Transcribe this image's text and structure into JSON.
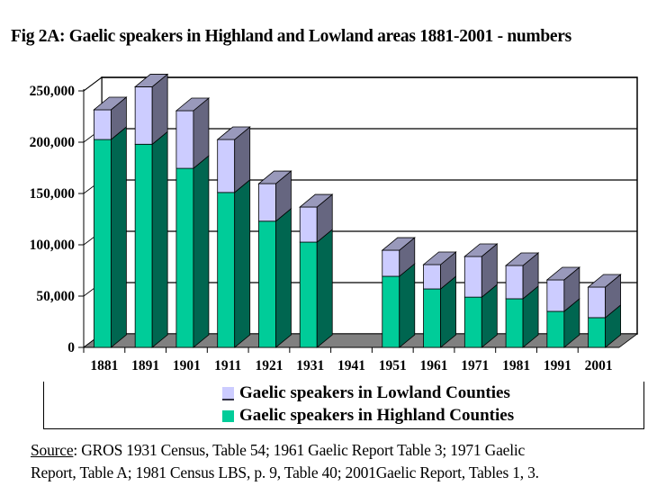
{
  "title": "Fig 2A: Gaelic speakers in Highland and Lowland areas 1881-2001 - numbers",
  "legend": {
    "lowland_label": "Gaelic speakers in Lowland Counties",
    "highland_label": "Gaelic speakers in Highland Counties"
  },
  "colors": {
    "lowland_front": "#ccccff",
    "lowland_side": "#666680",
    "lowland_top": "#9999bb",
    "highland_front": "#00cc99",
    "highland_side": "#006650",
    "floor": "#808080"
  },
  "source": {
    "label": "Source",
    "line1": ": GROS 1931 Census, Table 54; 1961 Gaelic Report Table 3; 1971 Gaelic",
    "line2": "Report, Table A; 1981 Census LBS, p. 9, Table 40; 2001Gaelic Report, Tables 1, 3."
  },
  "chart_data": {
    "type": "bar",
    "stacked": true,
    "three_d": true,
    "title": "Fig 2A: Gaelic speakers in Highland and Lowland areas 1881-2001 - numbers",
    "xlabel": "",
    "ylabel": "",
    "ylim": [
      0,
      250000
    ],
    "yticks": [
      0,
      50000,
      100000,
      150000,
      200000,
      250000
    ],
    "ytick_labels": [
      "0",
      "50,000",
      "100,000",
      "150,000",
      "200,000",
      "250,000"
    ],
    "grid": true,
    "legend_position": "bottom",
    "categories": [
      "1881",
      "1891",
      "1901",
      "1911",
      "1921",
      "1931",
      "1941",
      "1951",
      "1961",
      "1971",
      "1981",
      "1991",
      "2001"
    ],
    "series": [
      {
        "name": "Gaelic speakers in Highland Counties",
        "values": [
          202600,
          198000,
          174500,
          151000,
          123000,
          102600,
          0,
          69300,
          57000,
          49000,
          47400,
          35100,
          29000
        ]
      },
      {
        "name": "Gaelic speakers in Lowland Counties",
        "values": [
          29000,
          56000,
          56200,
          51600,
          36600,
          34200,
          0,
          25400,
          23700,
          39600,
          32400,
          30700,
          29800
        ]
      }
    ]
  }
}
